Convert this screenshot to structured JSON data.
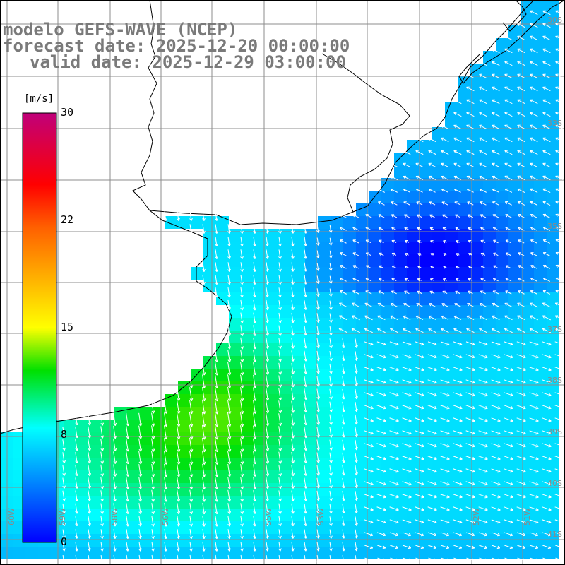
{
  "title": {
    "line1": "modelo GEFS-WAVE (NCEP)",
    "line2": "forecast date: 2025-12-20 00:00:00",
    "line3": "valid date: 2025-12-29 03:00:00"
  },
  "colorbar": {
    "unit": "[m/s]",
    "ticks": [
      "30",
      "22",
      "15",
      "8",
      "0"
    ],
    "tick_values": [
      30,
      22,
      15,
      8,
      0
    ],
    "stops": [
      {
        "v": 0,
        "c": "#0000ff"
      },
      {
        "v": 8,
        "c": "#00ffff"
      },
      {
        "v": 12,
        "c": "#00e000"
      },
      {
        "v": 15,
        "c": "#ffff00"
      },
      {
        "v": 22,
        "c": "#ff6000"
      },
      {
        "v": 25,
        "c": "#ff0000"
      },
      {
        "v": 30,
        "c": "#c0007a"
      }
    ]
  },
  "lat_labels": [
    "30S",
    "33S",
    "35S",
    "37S",
    "38S",
    "39S",
    "40S",
    "41S"
  ],
  "lat_values": [
    30,
    33,
    35,
    37,
    38,
    39,
    40,
    41
  ],
  "lon_labels": [
    "60W",
    "59W",
    "58W",
    "56W",
    "55W",
    "53W",
    "52W",
    "51W"
  ],
  "lon_values": [
    60,
    59,
    58,
    56,
    55,
    53,
    52,
    51
  ],
  "colors": {
    "land": "#ffffff",
    "grid": "#8c8c8c",
    "coast": "#000000",
    "arrow": "#ffffff",
    "label": "#8a8a8a"
  }
}
